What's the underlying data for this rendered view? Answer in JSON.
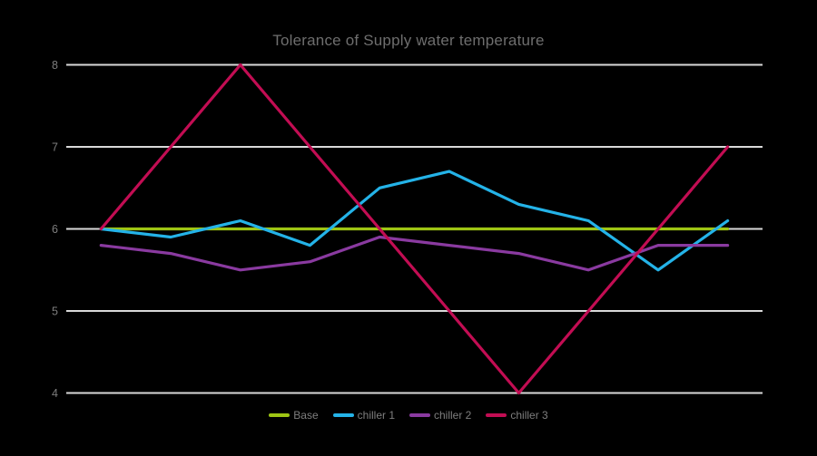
{
  "chart_data": {
    "type": "line",
    "title": "Tolerance of Supply water temperature",
    "xlabel": "",
    "ylabel": "",
    "ylim": [
      4,
      8
    ],
    "yticks": [
      8,
      7,
      6,
      5,
      4
    ],
    "grid": true,
    "legend_position": "bottom",
    "background_color": "#000000",
    "gridline_color": "#D9D9D9",
    "title_color": "#6E6E6E",
    "axis_text_color": "#7E7E7E",
    "series": [
      {
        "name": "Base",
        "color": "#9EC514",
        "values": [
          6,
          6,
          6,
          6,
          6,
          6,
          6,
          6,
          6,
          6
        ]
      },
      {
        "name": "chiller 1",
        "color": "#24B3E8",
        "values": [
          6,
          5.9,
          6.1,
          5.8,
          6.5,
          6.7,
          6.3,
          6.1,
          5.5,
          6.1
        ]
      },
      {
        "name": "chiller 2",
        "color": "#8A3AA0",
        "values": [
          5.8,
          5.7,
          5.5,
          5.6,
          5.9,
          5.8,
          5.7,
          5.5,
          5.8,
          5.8
        ]
      },
      {
        "name": "chiller 3",
        "color": "#C20D53",
        "values": [
          6,
          7,
          8,
          7,
          6,
          5,
          4,
          5,
          6,
          7
        ]
      }
    ]
  }
}
